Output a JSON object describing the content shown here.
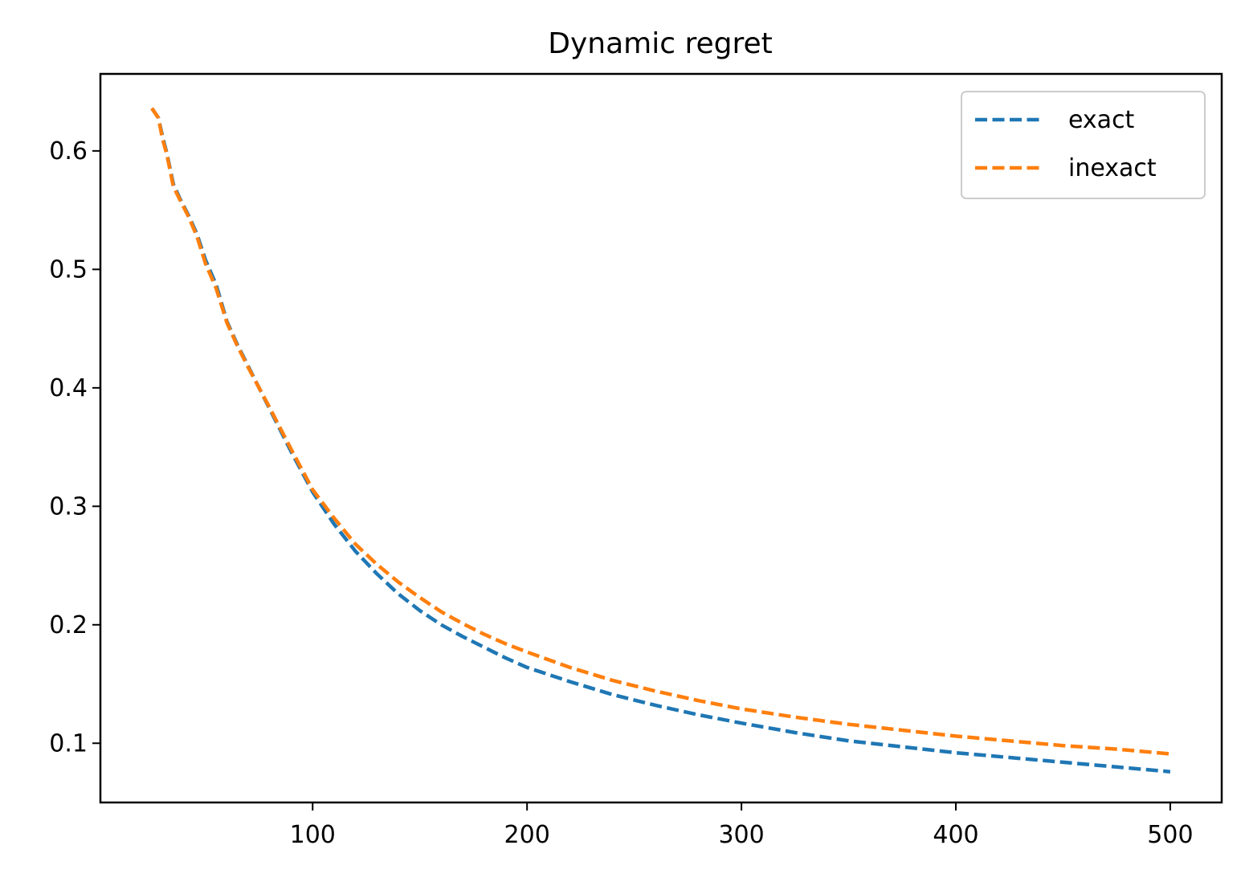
{
  "chart_data": {
    "type": "line",
    "title": "Dynamic regret",
    "xlabel": "",
    "ylabel": "",
    "xlim": [
      1,
      524
    ],
    "ylim": [
      0.05,
      0.665
    ],
    "xticks": [
      100,
      200,
      300,
      400,
      500
    ],
    "yticks": [
      0.1,
      0.2,
      0.3,
      0.4,
      0.5,
      0.6
    ],
    "grid": false,
    "legend_position": "top-right",
    "series": [
      {
        "name": "exact",
        "color": "#1f77b4",
        "line_style": "dashed",
        "x": [
          25,
          28,
          30,
          32,
          35,
          38,
          42,
          46,
          50,
          55,
          60,
          65,
          70,
          75,
          80,
          90,
          100,
          110,
          120,
          130,
          140,
          150,
          160,
          170,
          180,
          190,
          200,
          220,
          240,
          260,
          280,
          300,
          325,
          350,
          375,
          400,
          425,
          450,
          475,
          500
        ],
        "y": [
          0.636,
          0.628,
          0.612,
          0.598,
          0.572,
          0.56,
          0.546,
          0.53,
          0.508,
          0.487,
          0.456,
          0.436,
          0.418,
          0.4,
          0.382,
          0.346,
          0.312,
          0.285,
          0.262,
          0.243,
          0.226,
          0.212,
          0.2,
          0.19,
          0.181,
          0.172,
          0.164,
          0.152,
          0.141,
          0.132,
          0.124,
          0.117,
          0.109,
          0.102,
          0.097,
          0.092,
          0.088,
          0.084,
          0.08,
          0.076
        ]
      },
      {
        "name": "inexact",
        "color": "#ff7f0e",
        "line_style": "dashed",
        "x": [
          25,
          28,
          30,
          32,
          35,
          38,
          42,
          46,
          50,
          55,
          60,
          65,
          70,
          75,
          80,
          90,
          100,
          110,
          120,
          130,
          140,
          150,
          160,
          170,
          180,
          190,
          200,
          220,
          240,
          260,
          280,
          300,
          325,
          350,
          375,
          400,
          425,
          450,
          475,
          500
        ],
        "y": [
          0.636,
          0.628,
          0.61,
          0.597,
          0.57,
          0.559,
          0.545,
          0.528,
          0.505,
          0.484,
          0.455,
          0.435,
          0.417,
          0.4,
          0.383,
          0.348,
          0.314,
          0.29,
          0.268,
          0.251,
          0.236,
          0.223,
          0.211,
          0.201,
          0.192,
          0.184,
          0.177,
          0.164,
          0.153,
          0.144,
          0.136,
          0.129,
          0.122,
          0.116,
          0.111,
          0.106,
          0.102,
          0.098,
          0.095,
          0.091
        ]
      }
    ]
  }
}
